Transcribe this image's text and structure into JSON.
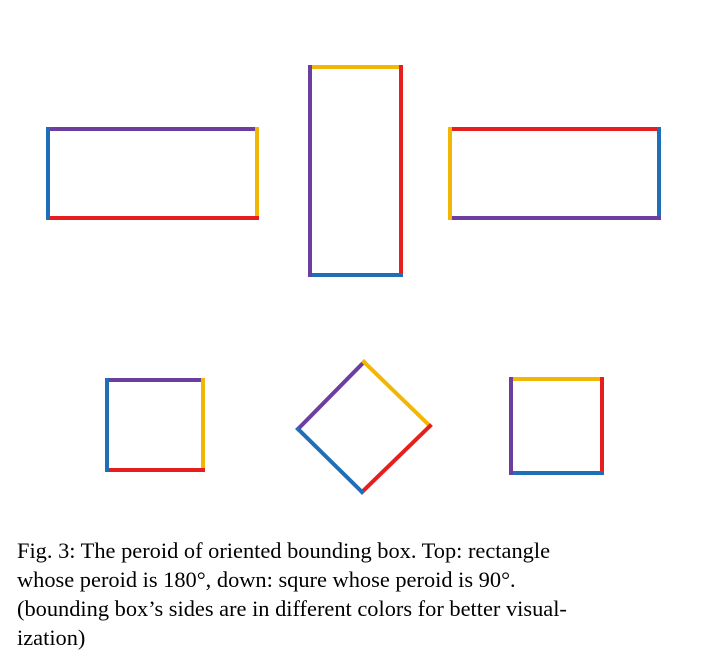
{
  "figure": {
    "colors": {
      "blue": "#1f6fb8",
      "purple": "#6c3ea0",
      "yellow": "#f2b705",
      "red": "#e61e1e"
    },
    "rows": [
      {
        "name": "top",
        "shape": "rectangle",
        "boxes": [
          {
            "name": "horizontal-rectangle-a",
            "sides": {
              "top": "purple",
              "right": "yellow",
              "bottom": "red",
              "left": "blue"
            }
          },
          {
            "name": "vertical-rectangle",
            "sides": {
              "top": "yellow",
              "right": "red",
              "bottom": "blue",
              "left": "purple"
            }
          },
          {
            "name": "horizontal-rectangle-b",
            "sides": {
              "top": "red",
              "right": "blue",
              "bottom": "purple",
              "left": "yellow"
            }
          }
        ]
      },
      {
        "name": "down",
        "shape": "square",
        "boxes": [
          {
            "name": "square-a",
            "sides": {
              "top": "purple",
              "right": "yellow",
              "bottom": "red",
              "left": "blue"
            }
          },
          {
            "name": "rotated-square",
            "sides": {
              "upper-left": "purple",
              "upper-right": "yellow",
              "lower-right": "red",
              "lower-left": "blue"
            }
          },
          {
            "name": "square-b",
            "sides": {
              "top": "yellow",
              "right": "red",
              "bottom": "blue",
              "left": "purple"
            }
          }
        ]
      }
    ]
  },
  "caption": {
    "lines": [
      "Fig. 3: The peroid of oriented bounding box. Top: rectangle",
      "whose peroid is 180°, down: squre whose peroid is 90°.",
      "(bounding box’s sides are in different colors for better visual-",
      "ization)"
    ]
  }
}
